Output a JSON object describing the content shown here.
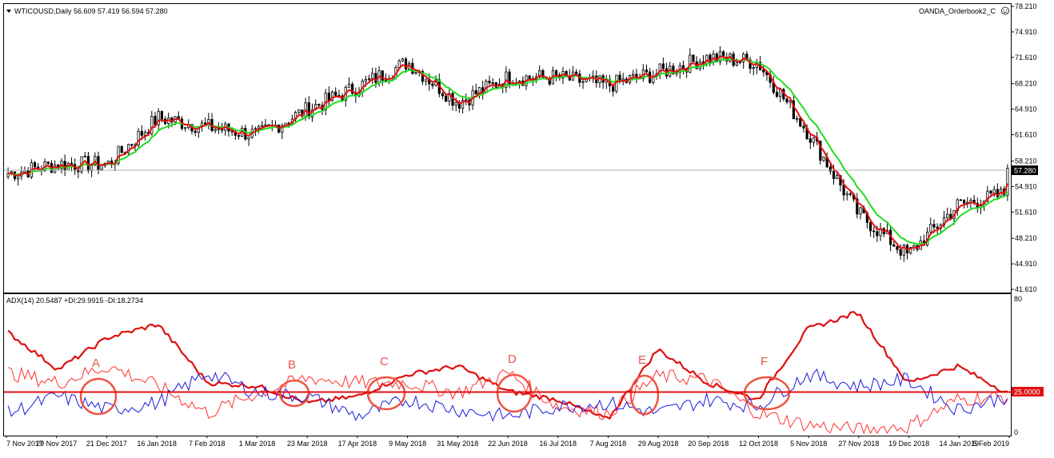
{
  "main_panel": {
    "header": "WTICOUSD,Daily  56.609 57.419 56.594 57.280",
    "broker": "OANDA_Orderbook2_C",
    "last_price": "57.280",
    "price_ticks": [
      "78.210",
      "74.910",
      "71.610",
      "68.210",
      "64.910",
      "61.610",
      "58.210",
      "54.910",
      "51.610",
      "48.210",
      "44.910",
      "41.610"
    ]
  },
  "adx_panel": {
    "header": "ADX(14) 20.5487 +DI:29.9915 -DI:18.2734",
    "level_label": "25.0000",
    "ticks": [
      "80",
      "0"
    ]
  },
  "x_axis": {
    "labels": [
      "7 Nov 2017",
      "29 Nov 2017",
      "21 Dec 2017",
      "16 Jan 2018",
      "7 Feb 2018",
      "1 Mar 2018",
      "23 Mar 2018",
      "17 Apr 2018",
      "9 May 2018",
      "31 May 2018",
      "22 Jun 2018",
      "16 Jul 2018",
      "7 Aug 2018",
      "29 Aug 2018",
      "20 Sep 2018",
      "12 Oct 2018",
      "5 Nov 2018",
      "27 Nov 2018",
      "19 Dec 2018",
      "14 Jan 2019",
      "5 Feb 2019"
    ]
  },
  "annotations": [
    "A",
    "B",
    "C",
    "D",
    "E",
    "F"
  ],
  "colors": {
    "candle": "#000000",
    "fast_ma": "#e01010",
    "slow_ma": "#22dd22",
    "adx": "#e01010",
    "plus_di": "#ff3333",
    "minus_di": "#1a1adf",
    "level": "#e01010",
    "annotation": "#ee5544"
  },
  "chart_data": [
    {
      "type": "line",
      "title": "WTICOUSD,Daily",
      "x": [
        "7 Nov 2017",
        "29 Nov 2017",
        "21 Dec 2017",
        "16 Jan 2018",
        "7 Feb 2018",
        "1 Mar 2018",
        "23 Mar 2018",
        "17 Apr 2018",
        "9 May 2018",
        "31 May 2018",
        "22 Jun 2018",
        "16 Jul 2018",
        "7 Aug 2018",
        "29 Aug 2018",
        "20 Sep 2018",
        "12 Oct 2018",
        "5 Nov 2018",
        "27 Nov 2018",
        "19 Dec 2018",
        "14 Jan 2019",
        "5 Feb 2019"
      ],
      "series": [
        {
          "values": [
            56.6,
            57.8,
            57.8,
            63.8,
            62.6,
            61.6,
            64.9,
            67.8,
            71.0,
            65.8,
            69.0,
            69.0,
            68.0,
            69.6,
            71.6,
            71.0,
            62.0,
            51.5,
            46.0,
            52.5,
            54.0
          ]
        }
      ],
      "ylim": [
        41.61,
        78.21
      ],
      "last_value": 57.28
    },
    {
      "type": "line",
      "title": "ADX(14) 20.5487 +DI:29.9915 -DI:18.2734",
      "x": [
        "7 Nov 2017",
        "29 Nov 2017",
        "21 Dec 2017",
        "16 Jan 2018",
        "7 Feb 2018",
        "1 Mar 2018",
        "23 Mar 2018",
        "17 Apr 2018",
        "9 May 2018",
        "31 May 2018",
        "22 Jun 2018",
        "16 Jul 2018",
        "7 Aug 2018",
        "29 Aug 2018",
        "20 Sep 2018",
        "12 Oct 2018",
        "5 Nov 2018",
        "27 Nov 2018",
        "19 Dec 2018",
        "14 Jan 2019",
        "5 Feb 2019"
      ],
      "series": [
        {
          "name": "ADX",
          "values": [
            60,
            38,
            57,
            65,
            30,
            28,
            18,
            22,
            35,
            40,
            25,
            20,
            8,
            50,
            30,
            20,
            62,
            72,
            30,
            40,
            24
          ]
        },
        {
          "name": "+DI",
          "values": [
            36,
            30,
            40,
            28,
            12,
            24,
            33,
            30,
            30,
            24,
            36,
            16,
            12,
            34,
            32,
            12,
            5,
            2,
            4,
            20,
            22
          ]
        },
        {
          "name": "-DI",
          "values": [
            12,
            22,
            14,
            18,
            36,
            24,
            22,
            10,
            20,
            14,
            10,
            16,
            18,
            12,
            20,
            16,
            35,
            28,
            32,
            14,
            22
          ]
        }
      ],
      "level": 25,
      "ylim": [
        0,
        80
      ]
    }
  ]
}
